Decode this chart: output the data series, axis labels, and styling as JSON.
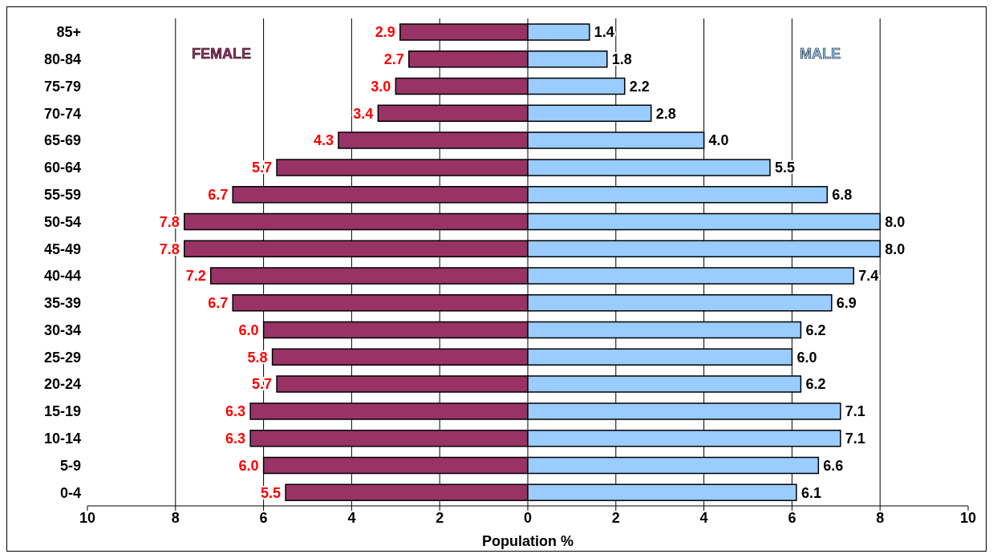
{
  "chart_data": {
    "type": "bar",
    "orientation": "horizontal",
    "xlabel": "Population %",
    "categories": [
      "85+",
      "80-84",
      "75-79",
      "70-74",
      "65-69",
      "60-64",
      "55-59",
      "50-54",
      "45-49",
      "40-44",
      "35-39",
      "30-34",
      "25-29",
      "20-24",
      "15-19",
      "10-14",
      "5-9",
      "0-4"
    ],
    "series": [
      {
        "name": "FEMALE",
        "color": "#993366",
        "base": [
          -2.9,
          -2.7,
          -3.0,
          -3.4,
          -4.3,
          -5.7,
          -6.7,
          -7.8,
          -7.8,
          -7.2,
          -6.7,
          -6.0,
          -5.8,
          -5.7,
          -6.3,
          -6.3,
          -6.0,
          -5.5
        ],
        "values": [
          2.9,
          2.7,
          3.0,
          3.4,
          4.3,
          5.7,
          6.7,
          7.8,
          7.8,
          7.2,
          6.7,
          6.0,
          5.8,
          5.7,
          6.3,
          6.3,
          6.0,
          5.5
        ],
        "value_labels": [
          "2.9",
          "2.7",
          "3.0",
          "3.4",
          "4.3",
          "5.7",
          "6.7",
          "7.8",
          "7.8",
          "7.2",
          "6.7",
          "6.0",
          "5.8",
          "5.7",
          "6.3",
          "6.3",
          "6.0",
          "5.5"
        ]
      },
      {
        "name": "MALE",
        "color": "#99ccff",
        "values": [
          1.4,
          1.8,
          2.2,
          2.8,
          4.0,
          5.5,
          6.8,
          8.0,
          8.0,
          7.4,
          6.9,
          6.2,
          6.0,
          6.2,
          7.1,
          7.1,
          6.6,
          6.1
        ],
        "value_labels": [
          "1.4",
          "1.8",
          "2.2",
          "2.8",
          "4.0",
          "5.5",
          "6.8",
          "8.0",
          "8.0",
          "7.4",
          "6.9",
          "6.2",
          "6.0",
          "6.2",
          "7.1",
          "7.1",
          "6.6",
          "6.1"
        ]
      }
    ],
    "xlim": [
      -10,
      10
    ],
    "xticks": [
      {
        "value": -10,
        "label": "10"
      },
      {
        "value": -8,
        "label": "8"
      },
      {
        "value": -6,
        "label": "6"
      },
      {
        "value": -4,
        "label": "4"
      },
      {
        "value": -2,
        "label": "2"
      },
      0,
      2,
      4,
      6,
      8,
      10
    ],
    "grid": "x",
    "legend": false
  }
}
